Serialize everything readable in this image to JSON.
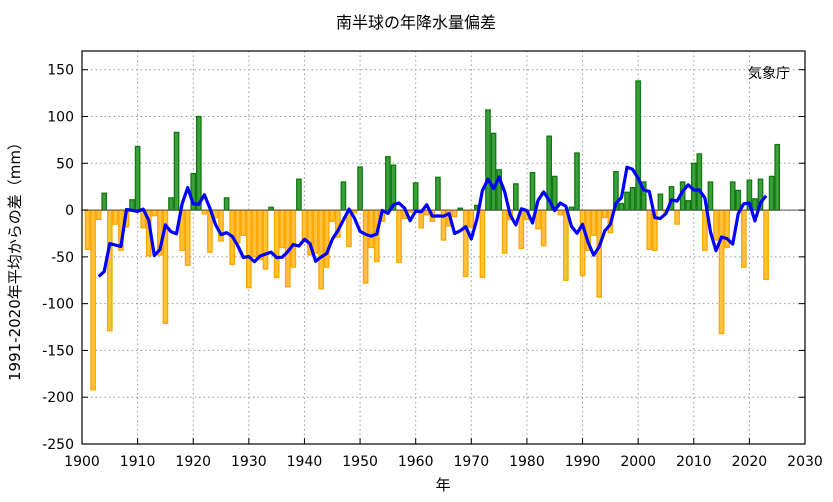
{
  "chart_data": {
    "type": "bar",
    "title": "南半球の年降水量偏差",
    "xlabel": "年",
    "ylabel": "1991-2020年平均からの差（mm）",
    "annotation": "気象庁",
    "xlim": [
      1900,
      2030
    ],
    "ylim": [
      -250,
      170
    ],
    "x_ticks": [
      1900,
      1910,
      1920,
      1930,
      1940,
      1950,
      1960,
      1970,
      1980,
      1990,
      2000,
      2010,
      2020,
      2030
    ],
    "y_ticks": [
      -250,
      -200,
      -150,
      -100,
      -50,
      0,
      50,
      100,
      150
    ],
    "grid": true,
    "legend": "none",
    "colors": {
      "positive_fill": "#3c9f3c",
      "positive_stroke": "#0f7a0f",
      "negative_fill": "#ffc23d",
      "negative_stroke": "#ffa500",
      "line": "#0000ff"
    },
    "series": [
      {
        "name": "annual_anomaly",
        "type": "bar",
        "x_start": 1901,
        "values": [
          -42,
          -192,
          -10,
          18,
          -129,
          -15,
          -43,
          -18,
          11,
          68,
          -19,
          -49,
          -6,
          -48,
          -121,
          13,
          83,
          -43,
          -59,
          39,
          100,
          -4,
          -45,
          -8,
          -33,
          13,
          -58,
          -35,
          -27,
          -83,
          -50,
          -53,
          -63,
          3,
          -72,
          -40,
          -82,
          -61,
          33,
          -34,
          -48,
          -46,
          -84,
          -61,
          -12,
          -29,
          30,
          -39,
          -3,
          46,
          -78,
          -40,
          -55,
          -12,
          57,
          48,
          -56,
          -9,
          -2,
          29,
          -19,
          -5,
          -12,
          35,
          -32,
          -17,
          -7,
          2,
          -71,
          -18,
          5,
          -72,
          107,
          82,
          43,
          -46,
          -10,
          28,
          -41,
          -10,
          40,
          -20,
          -38,
          79,
          36,
          -5,
          -75,
          3,
          61,
          -70,
          -43,
          -27,
          -93,
          -8,
          -24,
          41,
          7,
          19,
          24,
          138,
          30,
          -42,
          -43,
          17,
          -2,
          25,
          -15,
          30,
          10,
          50,
          60,
          -43,
          30,
          -32,
          -132,
          -40,
          30,
          21,
          -61,
          32,
          12,
          33,
          -74,
          36,
          70
        ]
      },
      {
        "name": "5-year_running_mean",
        "type": "line",
        "window": 5
      }
    ]
  }
}
